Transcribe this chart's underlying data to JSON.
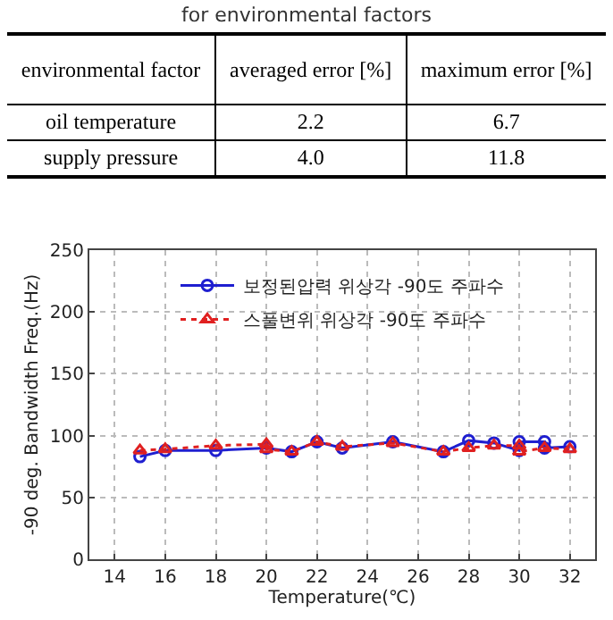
{
  "chart_data": [
    {
      "type": "other",
      "title": "for environmental factors",
      "annotations": [
        "environmental factor",
        "averaged error [%]",
        "maximum error [%]",
        "oil temperature",
        "2.2",
        "6.7",
        "supply pressure",
        "4.0",
        "11.8"
      ]
    },
    {
      "type": "line",
      "xlabel": "Temperature(℃)",
      "ylabel": "-90 deg. Bandwidth Freq.(Hz)",
      "xlim": [
        13,
        33
      ],
      "xticks": [
        14,
        16,
        18,
        20,
        22,
        24,
        26,
        28,
        30,
        32
      ],
      "ylim": [
        0,
        250
      ],
      "yticks": [
        0,
        50,
        100,
        150,
        200,
        250
      ],
      "grid": true,
      "legend": "top",
      "series": [
        {
          "name": "보정된압력 위상각 -90도 주파수",
          "color": "#1f1fd0",
          "marker": "circle",
          "line_style": "solid",
          "x": [
            15,
            16,
            18,
            20,
            21,
            22,
            23,
            25,
            27,
            28,
            29,
            30,
            30,
            31,
            31,
            32
          ],
          "values": [
            83,
            88,
            88,
            90,
            87,
            95,
            90,
            95,
            87,
            96,
            94,
            88,
            95,
            95,
            90,
            91
          ]
        },
        {
          "name": "스풀변위 위상각 -90도 주파수",
          "color": "#e02020",
          "marker": "triangle",
          "line_style": "dotted",
          "x": [
            15,
            16,
            18,
            20,
            20,
            21,
            22,
            23,
            25,
            27,
            28,
            29,
            30,
            30,
            31,
            32
          ],
          "values": [
            88,
            89,
            92,
            93,
            89,
            87,
            95,
            91,
            94,
            87,
            90,
            92,
            92,
            87,
            90,
            89
          ]
        }
      ]
    }
  ]
}
